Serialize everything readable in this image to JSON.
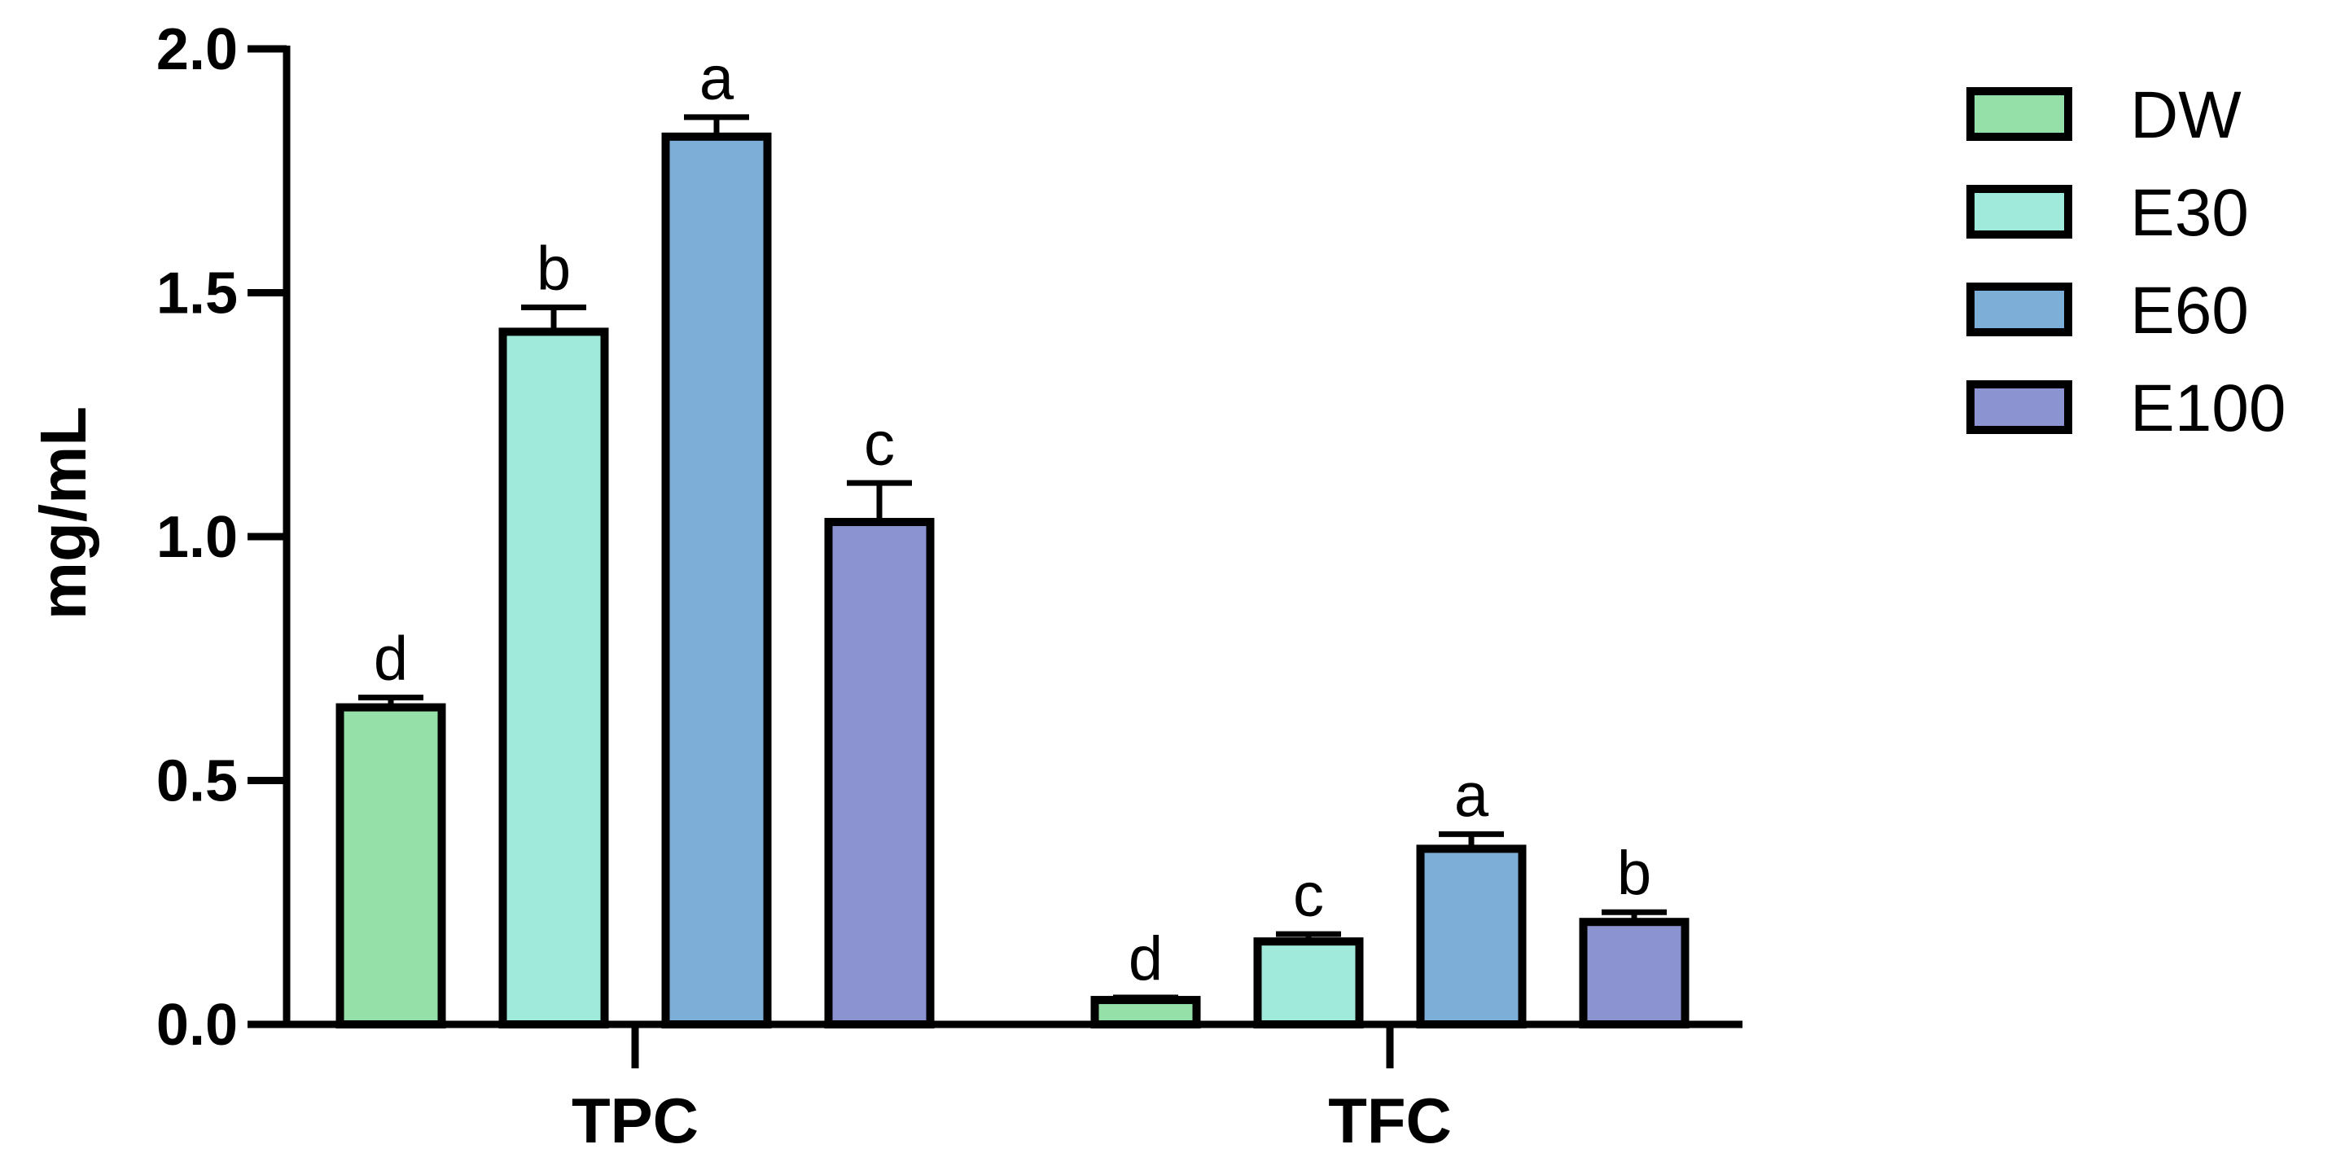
{
  "chart_data": {
    "type": "bar",
    "title": "",
    "xlabel": "",
    "ylabel": "mg/mL",
    "ylim": [
      0,
      2.0
    ],
    "yticks": [
      0.0,
      0.5,
      1.0,
      1.5,
      2.0
    ],
    "ytick_labels": [
      "0.0",
      "0.5",
      "1.0",
      "1.5",
      "2.0"
    ],
    "grid": false,
    "legend_position": "top-right",
    "categories": [
      "TPC",
      "TFC"
    ],
    "series": [
      {
        "name": "DW",
        "color": "#95dfa9",
        "values": [
          0.65,
          0.05
        ],
        "errors": [
          0.02,
          0.005
        ],
        "letters": [
          "d",
          "d"
        ]
      },
      {
        "name": "E30",
        "color": "#a0eadb",
        "values": [
          1.42,
          0.17
        ],
        "errors": [
          0.05,
          0.015
        ],
        "letters": [
          "b",
          "c"
        ]
      },
      {
        "name": "E60",
        "color": "#7caed8",
        "values": [
          1.82,
          0.36
        ],
        "errors": [
          0.04,
          0.03
        ],
        "letters": [
          "a",
          "a"
        ]
      },
      {
        "name": "E100",
        "color": "#8b93d0",
        "values": [
          1.03,
          0.21
        ],
        "errors": [
          0.08,
          0.02
        ],
        "letters": [
          "c",
          "b"
        ]
      }
    ]
  }
}
